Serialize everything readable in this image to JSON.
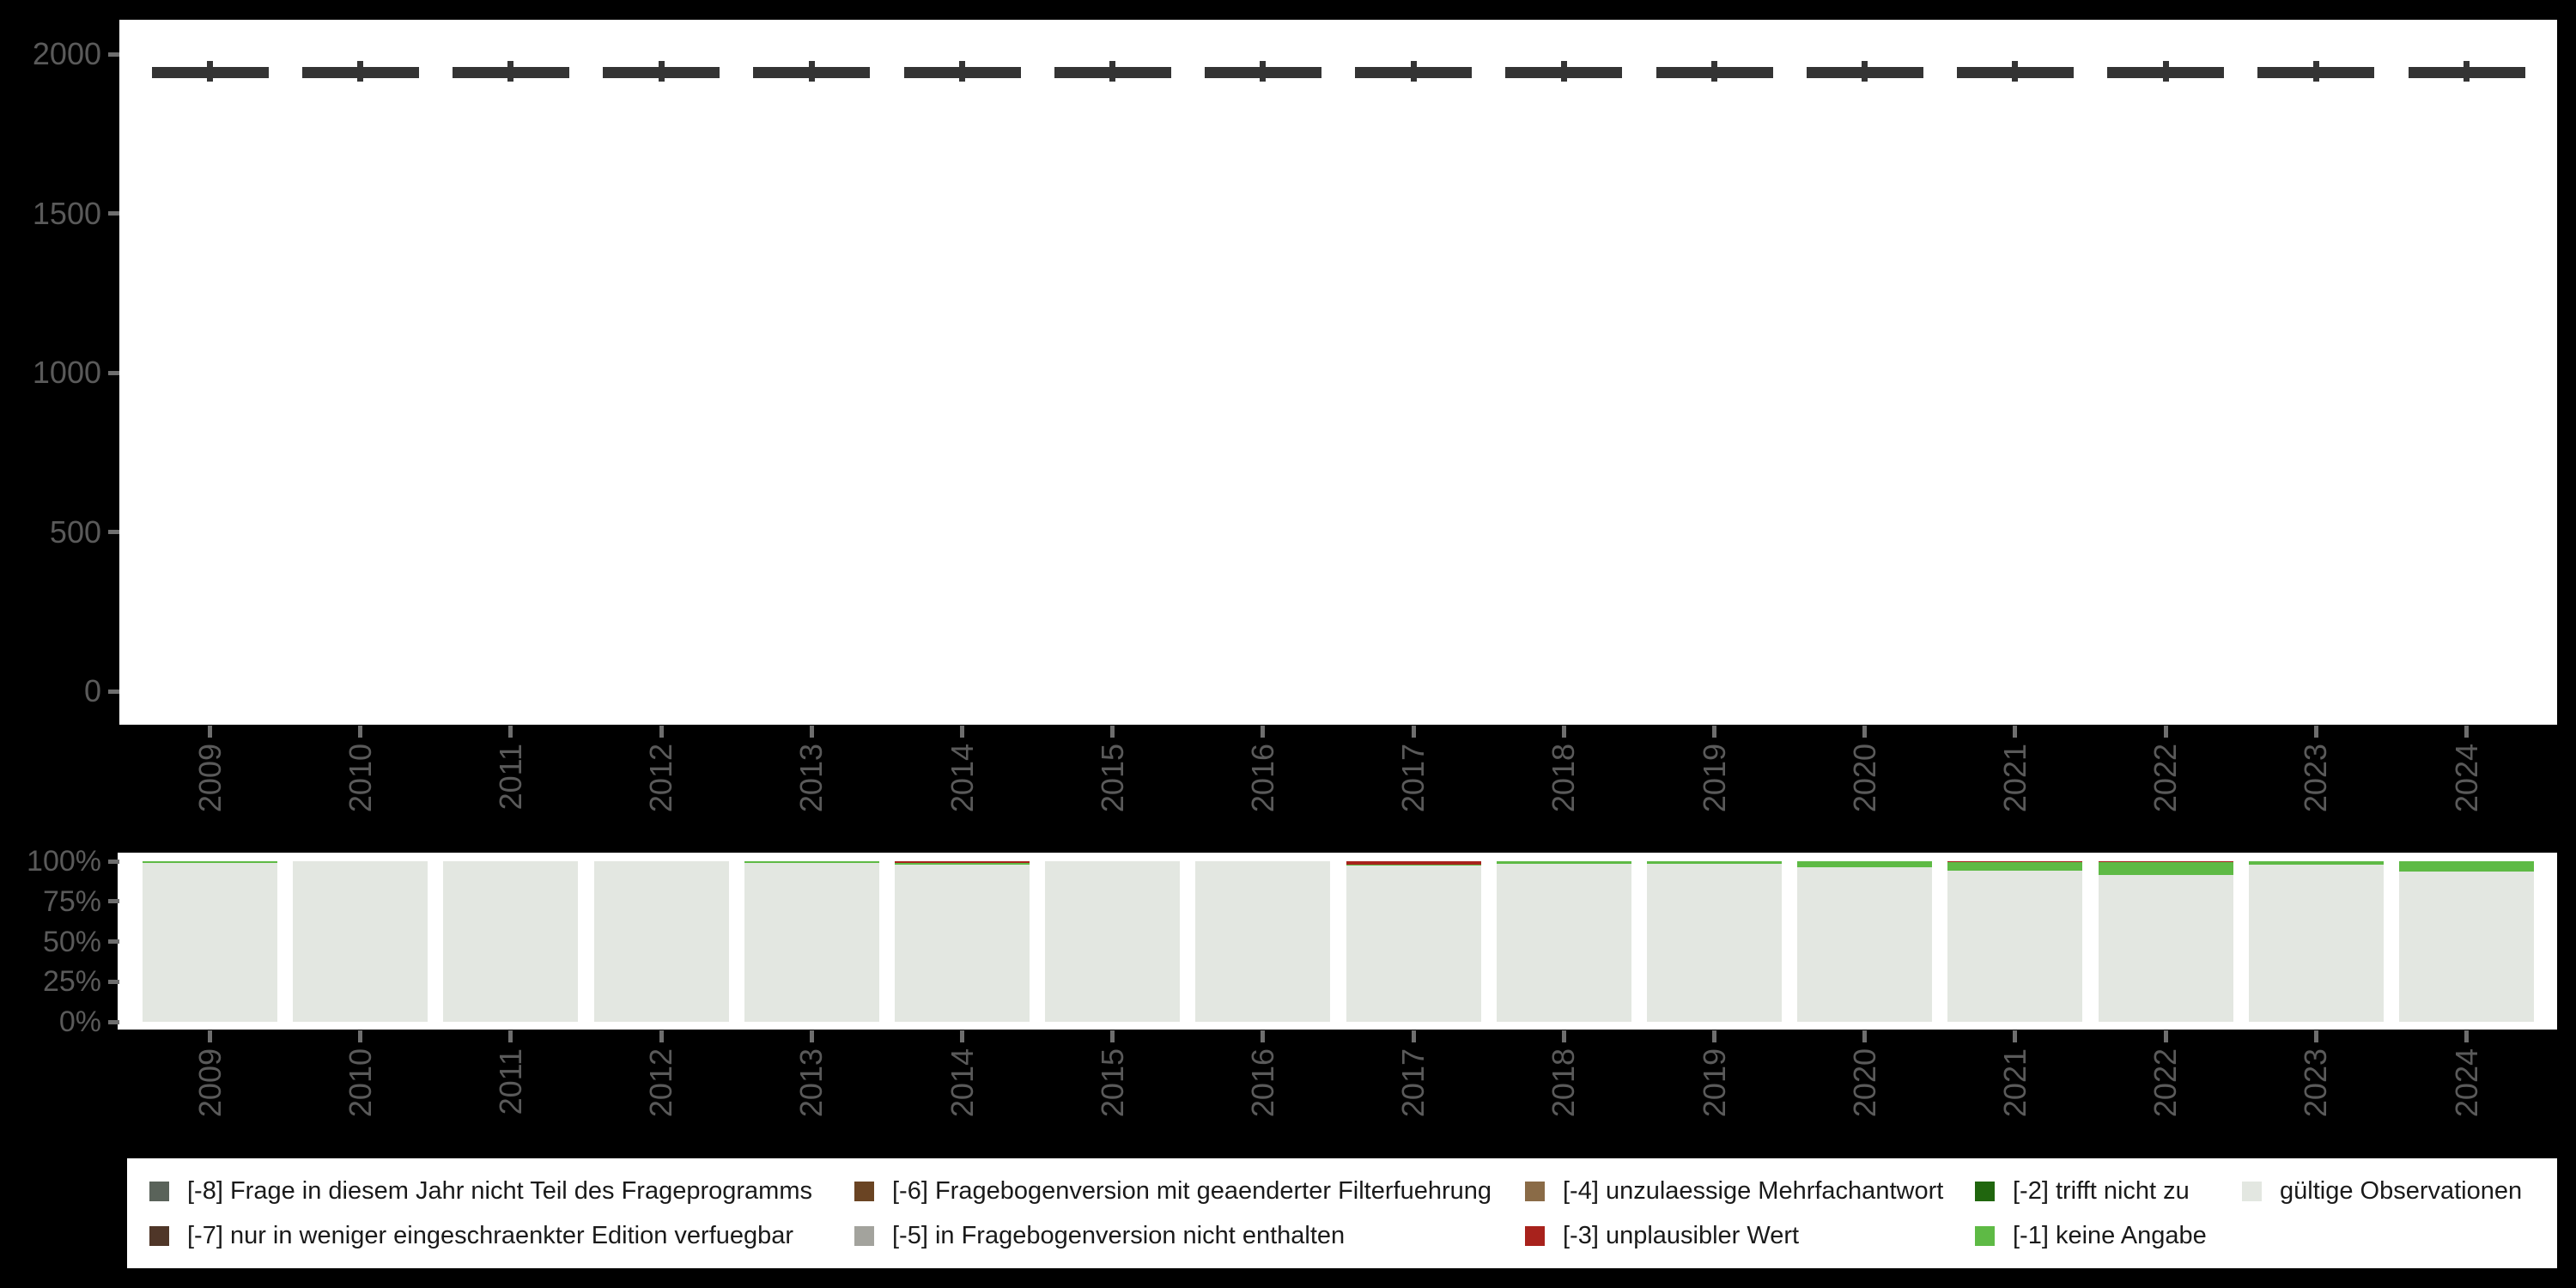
{
  "colors": {
    "background": "#000000",
    "panel": "#ffffff",
    "axis_text": "#5a5a5a",
    "tick": "#6e6e6e",
    "box": "#343434",
    "valid": "#e3e7e1",
    "minus1": "#5eba45",
    "minus2": "#20660e",
    "minus3": "#a8221c",
    "minus4": "#8a6b47",
    "minus5": "#a3a39d",
    "minus6": "#6a4423",
    "minus7": "#4f3628",
    "minus8": "#5a635a"
  },
  "chart_data": [
    {
      "type": "boxplot",
      "title": "",
      "xlabel": "",
      "ylabel": "",
      "categories": [
        "2009",
        "2010",
        "2011",
        "2012",
        "2013",
        "2014",
        "2015",
        "2016",
        "2017",
        "2018",
        "2019",
        "2020",
        "2021",
        "2022",
        "2023",
        "2024"
      ],
      "ylim": [
        0,
        2100
      ],
      "yticks": [
        0,
        500,
        1000,
        1500,
        2000
      ],
      "ytick_labels": [
        "0",
        "500",
        "1000",
        "1500",
        "2000"
      ],
      "grid": "off",
      "legend_position": "none",
      "series": [
        {
          "year": "2009",
          "low": 1913,
          "q1": 1924,
          "median": 1940,
          "q3": 1959,
          "high": 1978
        },
        {
          "year": "2010",
          "low": 1913,
          "q1": 1924,
          "median": 1940,
          "q3": 1959,
          "high": 1978
        },
        {
          "year": "2011",
          "low": 1913,
          "q1": 1924,
          "median": 1940,
          "q3": 1959,
          "high": 1978
        },
        {
          "year": "2012",
          "low": 1913,
          "q1": 1924,
          "median": 1940,
          "q3": 1959,
          "high": 1978
        },
        {
          "year": "2013",
          "low": 1913,
          "q1": 1924,
          "median": 1940,
          "q3": 1959,
          "high": 1978
        },
        {
          "year": "2014",
          "low": 1913,
          "q1": 1924,
          "median": 1940,
          "q3": 1959,
          "high": 1978
        },
        {
          "year": "2015",
          "low": 1913,
          "q1": 1924,
          "median": 1940,
          "q3": 1959,
          "high": 1978
        },
        {
          "year": "2016",
          "low": 1913,
          "q1": 1924,
          "median": 1940,
          "q3": 1959,
          "high": 1978
        },
        {
          "year": "2017",
          "low": 1913,
          "q1": 1924,
          "median": 1940,
          "q3": 1959,
          "high": 1978
        },
        {
          "year": "2018",
          "low": 1913,
          "q1": 1924,
          "median": 1940,
          "q3": 1959,
          "high": 1978
        },
        {
          "year": "2019",
          "low": 1913,
          "q1": 1924,
          "median": 1940,
          "q3": 1959,
          "high": 1978
        },
        {
          "year": "2020",
          "low": 1913,
          "q1": 1924,
          "median": 1940,
          "q3": 1959,
          "high": 1978
        },
        {
          "year": "2021",
          "low": 1913,
          "q1": 1924,
          "median": 1940,
          "q3": 1959,
          "high": 1978
        },
        {
          "year": "2022",
          "low": 1913,
          "q1": 1924,
          "median": 1940,
          "q3": 1959,
          "high": 1978
        },
        {
          "year": "2023",
          "low": 1913,
          "q1": 1924,
          "median": 1940,
          "q3": 1959,
          "high": 1978
        },
        {
          "year": "2024",
          "low": 1913,
          "q1": 1924,
          "median": 1940,
          "q3": 1959,
          "high": 1978
        }
      ]
    },
    {
      "type": "stacked-bar-100",
      "title": "",
      "xlabel": "",
      "ylabel": "",
      "categories": [
        "2009",
        "2010",
        "2011",
        "2012",
        "2013",
        "2014",
        "2015",
        "2016",
        "2017",
        "2018",
        "2019",
        "2020",
        "2021",
        "2022",
        "2023",
        "2024"
      ],
      "ylim": [
        0,
        100
      ],
      "yticks": [
        0,
        25,
        50,
        75,
        100
      ],
      "ytick_labels": [
        "0%",
        "25%",
        "50%",
        "75%",
        "100%"
      ],
      "grid": "off",
      "unit": "percent",
      "series": [
        {
          "name": "[-3] unplausibler Wert",
          "color_key": "minus3",
          "values": [
            0,
            0,
            0,
            0,
            0,
            1.3,
            0,
            0,
            2.1,
            0,
            0,
            0,
            0.8,
            0.8,
            0,
            0
          ]
        },
        {
          "name": "[-1] keine Angabe",
          "color_key": "minus1",
          "values": [
            1.0,
            0,
            0,
            0,
            1.0,
            1.0,
            0,
            0,
            0.8,
            1.6,
            1.6,
            3.7,
            5.3,
            7.5,
            2.1,
            6.4
          ]
        },
        {
          "name": "gültige Observationen",
          "color_key": "valid",
          "values": [
            99.0,
            100,
            100,
            100,
            99.0,
            97.7,
            100,
            100,
            97.1,
            98.4,
            98.4,
            96.3,
            93.9,
            91.7,
            97.9,
            93.6
          ]
        }
      ]
    }
  ],
  "legend": {
    "items": [
      {
        "label": "[-8] Frage in diesem Jahr nicht Teil des Frageprogramms",
        "color_key": "minus8"
      },
      {
        "label": "[-7] nur in weniger eingeschraenkter Edition verfuegbar",
        "color_key": "minus7"
      },
      {
        "label": "[-6] Fragebogenversion mit geaenderter Filterfuehrung",
        "color_key": "minus6"
      },
      {
        "label": "[-5] in Fragebogenversion nicht enthalten",
        "color_key": "minus5"
      },
      {
        "label": "[-4] unzulaessige Mehrfachantwort",
        "color_key": "minus4"
      },
      {
        "label": "[-3] unplausibler Wert",
        "color_key": "minus3"
      },
      {
        "label": "[-2] trifft nicht zu",
        "color_key": "minus2"
      },
      {
        "label": "[-1] keine Angabe",
        "color_key": "minus1"
      },
      {
        "label": "gültige Observationen",
        "color_key": "valid"
      }
    ]
  }
}
